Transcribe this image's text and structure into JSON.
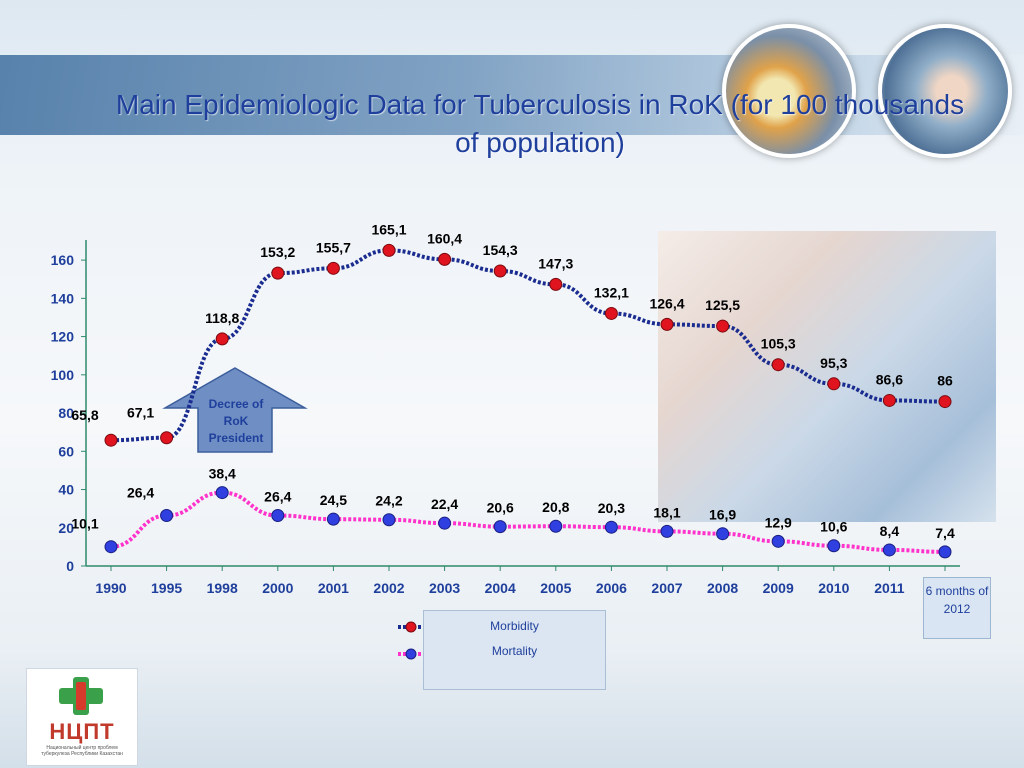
{
  "title": "Main Epidemiologic Data for Tuberculosis in RoK (for 100 thousands of population)",
  "decree_label": "Decree of RoK President",
  "months_note": "6 months of 2012",
  "logo": {
    "name": "НЦПТ",
    "subtitle": "Национальный центр проблем туберкулеза Республики Казахстан"
  },
  "colors": {
    "morbidity_line": "#1a2c8f",
    "mortality_line": "#ff33cc",
    "morbidity_marker": "#e0141e",
    "mortality_marker": "#2f3fe0",
    "axis": "#2f8a6a",
    "text": "#1f3f9c"
  },
  "chart_data": {
    "type": "line",
    "categories": [
      "1990",
      "1995",
      "1998",
      "2000",
      "2001",
      "2002",
      "2003",
      "2004",
      "2005",
      "2006",
      "2007",
      "2008",
      "2009",
      "2010",
      "2011",
      ""
    ],
    "ylim": [
      0,
      170
    ],
    "yticks": [
      0,
      20,
      40,
      60,
      80,
      100,
      120,
      140,
      160
    ],
    "series": [
      {
        "name": "Morbidity",
        "values": [
          65.8,
          67.1,
          118.8,
          153.2,
          155.7,
          165.1,
          160.4,
          154.3,
          147.3,
          132.1,
          126.4,
          125.5,
          105.3,
          95.3,
          86.6,
          86
        ],
        "labels": [
          "65,8",
          "67,1",
          "118,8",
          "153,2",
          "155,7",
          "165,1",
          "160,4",
          "154,3",
          "147,3",
          "132,1",
          "126,4",
          "125,5",
          "105,3",
          "95,3",
          "86,6",
          "86"
        ]
      },
      {
        "name": "Mortality",
        "values": [
          10.1,
          26.4,
          38.4,
          26.4,
          24.5,
          24.2,
          22.4,
          20.6,
          20.8,
          20.3,
          18.1,
          16.9,
          12.9,
          10.6,
          8.4,
          7.4
        ],
        "labels": [
          "10,1",
          "26,4",
          "38,4",
          "26,4",
          "24,5",
          "24,2",
          "22,4",
          "20,6",
          "20,8",
          "20,3",
          "18,1",
          "16,9",
          "12,9",
          "10,6",
          "8,4",
          "7,4"
        ]
      }
    ],
    "legend_position": "bottom",
    "grid": false
  }
}
